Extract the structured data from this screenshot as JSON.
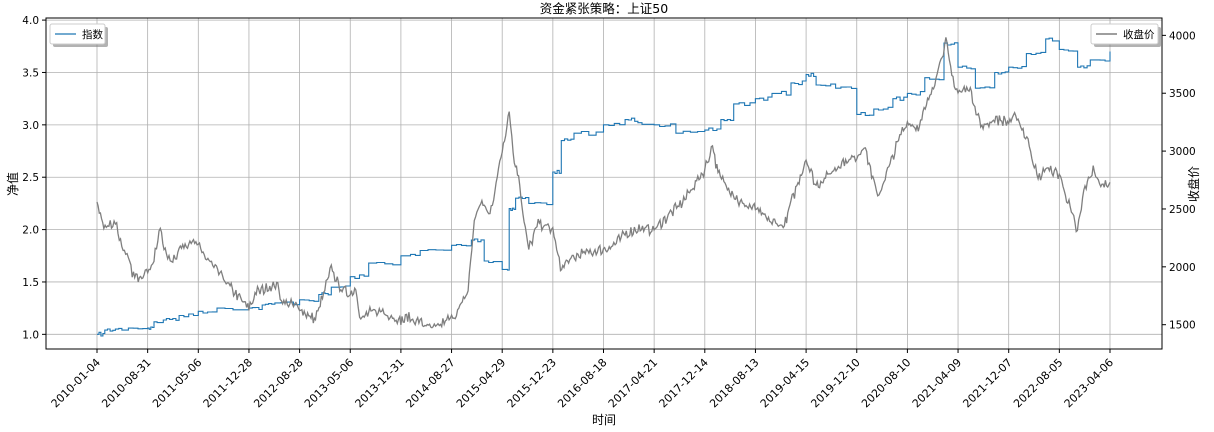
{
  "chart_data": {
    "type": "line",
    "title": "资金紧张策略：上证50",
    "xlabel": "时间",
    "ylabel_left": "净值",
    "ylabel_right": "收盘价",
    "x_ticks": [
      "2010-01-04",
      "2010-08-31",
      "2011-05-06",
      "2011-12-28",
      "2012-08-28",
      "2013-05-06",
      "2013-12-31",
      "2014-08-27",
      "2015-04-29",
      "2015-12-23",
      "2016-08-18",
      "2017-04-21",
      "2017-12-14",
      "2018-08-13",
      "2019-04-15",
      "2019-12-10",
      "2020-08-10",
      "2021-04-09",
      "2021-12-07",
      "2022-08-05",
      "2023-04-06"
    ],
    "y_left_ticks": [
      "1.0",
      "1.5",
      "2.0",
      "2.5",
      "3.0",
      "3.5",
      "4.0"
    ],
    "y_right_ticks": [
      "1500",
      "2000",
      "2500",
      "3000",
      "3500",
      "4000"
    ],
    "ylim_left": [
      0.86,
      4.02
    ],
    "ylim_right": [
      1290,
      4150
    ],
    "grid": true,
    "legend_left": {
      "position": "top-left",
      "entries": [
        "指数"
      ]
    },
    "legend_right": {
      "position": "top-right",
      "entries": [
        "收盘价"
      ]
    },
    "series": [
      {
        "name": "指数",
        "axis": "left",
        "color": "#1f77b4",
        "style": "step",
        "points": [
          [
            "2010-01-04",
            1.0
          ],
          [
            "2010-02-10",
            1.04
          ],
          [
            "2010-04-01",
            1.05
          ],
          [
            "2010-06-01",
            1.06
          ],
          [
            "2010-08-31",
            1.06
          ],
          [
            "2010-10-01",
            1.12
          ],
          [
            "2010-12-01",
            1.15
          ],
          [
            "2011-02-01",
            1.18
          ],
          [
            "2011-05-06",
            1.22
          ],
          [
            "2011-08-01",
            1.25
          ],
          [
            "2011-12-28",
            1.25
          ],
          [
            "2012-03-01",
            1.28
          ],
          [
            "2012-05-01",
            1.3
          ],
          [
            "2012-08-28",
            1.33
          ],
          [
            "2012-12-01",
            1.38
          ],
          [
            "2013-02-01",
            1.45
          ],
          [
            "2013-05-06",
            1.55
          ],
          [
            "2013-08-01",
            1.68
          ],
          [
            "2013-12-31",
            1.75
          ],
          [
            "2014-04-01",
            1.8
          ],
          [
            "2014-08-27",
            1.85
          ],
          [
            "2014-12-01",
            1.9
          ],
          [
            "2015-02-01",
            1.7
          ],
          [
            "2015-04-29",
            1.62
          ],
          [
            "2015-06-01",
            2.2
          ],
          [
            "2015-07-01",
            2.3
          ],
          [
            "2015-09-01",
            2.25
          ],
          [
            "2015-12-23",
            2.55
          ],
          [
            "2016-02-01",
            2.85
          ],
          [
            "2016-04-01",
            2.92
          ],
          [
            "2016-08-18",
            3.0
          ],
          [
            "2016-12-01",
            3.05
          ],
          [
            "2017-02-01",
            3.02
          ],
          [
            "2017-04-21",
            3.0
          ],
          [
            "2017-08-01",
            2.92
          ],
          [
            "2017-12-14",
            2.95
          ],
          [
            "2018-03-01",
            3.05
          ],
          [
            "2018-05-01",
            3.2
          ],
          [
            "2018-08-13",
            3.25
          ],
          [
            "2018-11-01",
            3.3
          ],
          [
            "2019-02-01",
            3.4
          ],
          [
            "2019-04-15",
            3.48
          ],
          [
            "2019-06-01",
            3.38
          ],
          [
            "2019-09-01",
            3.35
          ],
          [
            "2019-12-10",
            3.1
          ],
          [
            "2020-03-01",
            3.15
          ],
          [
            "2020-06-01",
            3.25
          ],
          [
            "2020-08-10",
            3.3
          ],
          [
            "2020-11-01",
            3.45
          ],
          [
            "2021-02-01",
            3.78
          ],
          [
            "2021-04-09",
            3.55
          ],
          [
            "2021-07-01",
            3.35
          ],
          [
            "2021-10-01",
            3.5
          ],
          [
            "2021-12-07",
            3.55
          ],
          [
            "2022-03-01",
            3.68
          ],
          [
            "2022-06-01",
            3.82
          ],
          [
            "2022-08-05",
            3.72
          ],
          [
            "2022-11-01",
            3.55
          ],
          [
            "2023-01-01",
            3.62
          ],
          [
            "2023-04-06",
            3.7
          ]
        ]
      },
      {
        "name": "收盘价",
        "axis": "right",
        "color": "#7f7f7f",
        "style": "line",
        "points": [
          [
            "2010-01-04",
            2530
          ],
          [
            "2010-01-20",
            2470
          ],
          [
            "2010-02-05",
            2330
          ],
          [
            "2010-03-01",
            2360
          ],
          [
            "2010-04-01",
            2390
          ],
          [
            "2010-05-01",
            2180
          ],
          [
            "2010-06-01",
            2050
          ],
          [
            "2010-07-01",
            1900
          ],
          [
            "2010-08-31",
            1970
          ],
          [
            "2010-10-01",
            2050
          ],
          [
            "2010-11-01",
            2340
          ],
          [
            "2010-12-01",
            2080
          ],
          [
            "2011-01-01",
            2060
          ],
          [
            "2011-02-01",
            2150
          ],
          [
            "2011-04-01",
            2230
          ],
          [
            "2011-05-06",
            2170
          ],
          [
            "2011-07-01",
            2030
          ],
          [
            "2011-09-01",
            1900
          ],
          [
            "2011-10-01",
            1820
          ],
          [
            "2011-12-28",
            1640
          ],
          [
            "2012-02-01",
            1780
          ],
          [
            "2012-04-01",
            1820
          ],
          [
            "2012-05-15",
            1850
          ],
          [
            "2012-06-01",
            1700
          ],
          [
            "2012-08-28",
            1650
          ],
          [
            "2012-10-01",
            1580
          ],
          [
            "2012-11-15",
            1550
          ],
          [
            "2012-12-31",
            1800
          ],
          [
            "2013-02-01",
            1990
          ],
          [
            "2013-03-15",
            1820
          ],
          [
            "2013-05-06",
            1760
          ],
          [
            "2013-06-01",
            1820
          ],
          [
            "2013-06-25",
            1540
          ],
          [
            "2013-08-01",
            1600
          ],
          [
            "2013-10-01",
            1620
          ],
          [
            "2013-12-31",
            1530
          ],
          [
            "2014-02-01",
            1560
          ],
          [
            "2014-04-01",
            1520
          ],
          [
            "2014-06-01",
            1460
          ],
          [
            "2014-08-27",
            1560
          ],
          [
            "2014-10-01",
            1620
          ],
          [
            "2014-11-15",
            1800
          ],
          [
            "2014-12-15",
            2400
          ],
          [
            "2015-01-15",
            2560
          ],
          [
            "2015-03-01",
            2450
          ],
          [
            "2015-04-29",
            3000
          ],
          [
            "2015-06-01",
            3350
          ],
          [
            "2015-06-25",
            2900
          ],
          [
            "2015-07-15",
            2800
          ],
          [
            "2015-08-10",
            2380
          ],
          [
            "2015-09-01",
            2150
          ],
          [
            "2015-10-15",
            2380
          ],
          [
            "2015-12-23",
            2320
          ],
          [
            "2016-01-28",
            1980
          ],
          [
            "2016-03-01",
            2040
          ],
          [
            "2016-05-01",
            2110
          ],
          [
            "2016-08-18",
            2150
          ],
          [
            "2016-10-01",
            2180
          ],
          [
            "2016-12-01",
            2280
          ],
          [
            "2017-02-01",
            2330
          ],
          [
            "2017-04-21",
            2320
          ],
          [
            "2017-07-01",
            2450
          ],
          [
            "2017-09-01",
            2560
          ],
          [
            "2017-12-14",
            2840
          ],
          [
            "2018-01-20",
            3050
          ],
          [
            "2018-02-15",
            2800
          ],
          [
            "2018-04-01",
            2700
          ],
          [
            "2018-06-01",
            2550
          ],
          [
            "2018-08-13",
            2500
          ],
          [
            "2018-10-15",
            2400
          ],
          [
            "2018-12-31",
            2350
          ],
          [
            "2019-02-01",
            2550
          ],
          [
            "2019-04-15",
            2930
          ],
          [
            "2019-06-01",
            2700
          ],
          [
            "2019-08-01",
            2800
          ],
          [
            "2019-10-01",
            2900
          ],
          [
            "2019-12-10",
            2950
          ],
          [
            "2020-01-15",
            3050
          ],
          [
            "2020-03-20",
            2600
          ],
          [
            "2020-05-01",
            2800
          ],
          [
            "2020-07-10",
            3150
          ],
          [
            "2020-08-10",
            3250
          ],
          [
            "2020-10-01",
            3200
          ],
          [
            "2020-12-01",
            3500
          ],
          [
            "2021-02-10",
            3950
          ],
          [
            "2021-03-10",
            3650
          ],
          [
            "2021-04-09",
            3500
          ],
          [
            "2021-06-01",
            3550
          ],
          [
            "2021-08-01",
            3200
          ],
          [
            "2021-10-01",
            3280
          ],
          [
            "2021-12-07",
            3250
          ],
          [
            "2022-01-15",
            3300
          ],
          [
            "2022-03-15",
            3050
          ],
          [
            "2022-04-26",
            2750
          ],
          [
            "2022-06-01",
            2850
          ],
          [
            "2022-08-05",
            2800
          ],
          [
            "2022-10-31",
            2300
          ],
          [
            "2022-12-01",
            2650
          ],
          [
            "2023-01-15",
            2850
          ],
          [
            "2023-02-15",
            2700
          ],
          [
            "2023-04-06",
            2730
          ]
        ]
      }
    ]
  }
}
